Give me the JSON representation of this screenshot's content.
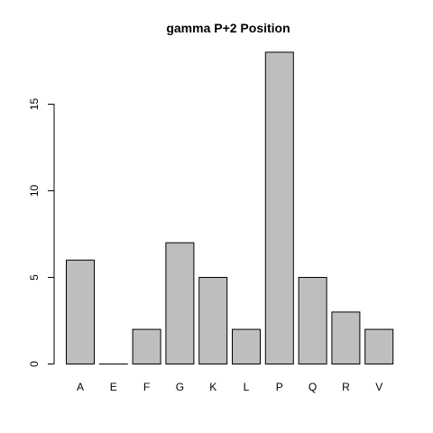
{
  "chart_data": {
    "type": "bar",
    "title": "gamma P+2 Position",
    "xlabel": "",
    "ylabel": "",
    "categories": [
      "A",
      "E",
      "F",
      "G",
      "K",
      "L",
      "P",
      "Q",
      "R",
      "V"
    ],
    "values": [
      6,
      0,
      2,
      7,
      5,
      2,
      18,
      5,
      3,
      2
    ],
    "ylim": [
      0,
      18
    ],
    "yticks": [
      0,
      5,
      10,
      15
    ],
    "bar_color": "#bebebe",
    "border_color": "#000000",
    "grid": false
  }
}
